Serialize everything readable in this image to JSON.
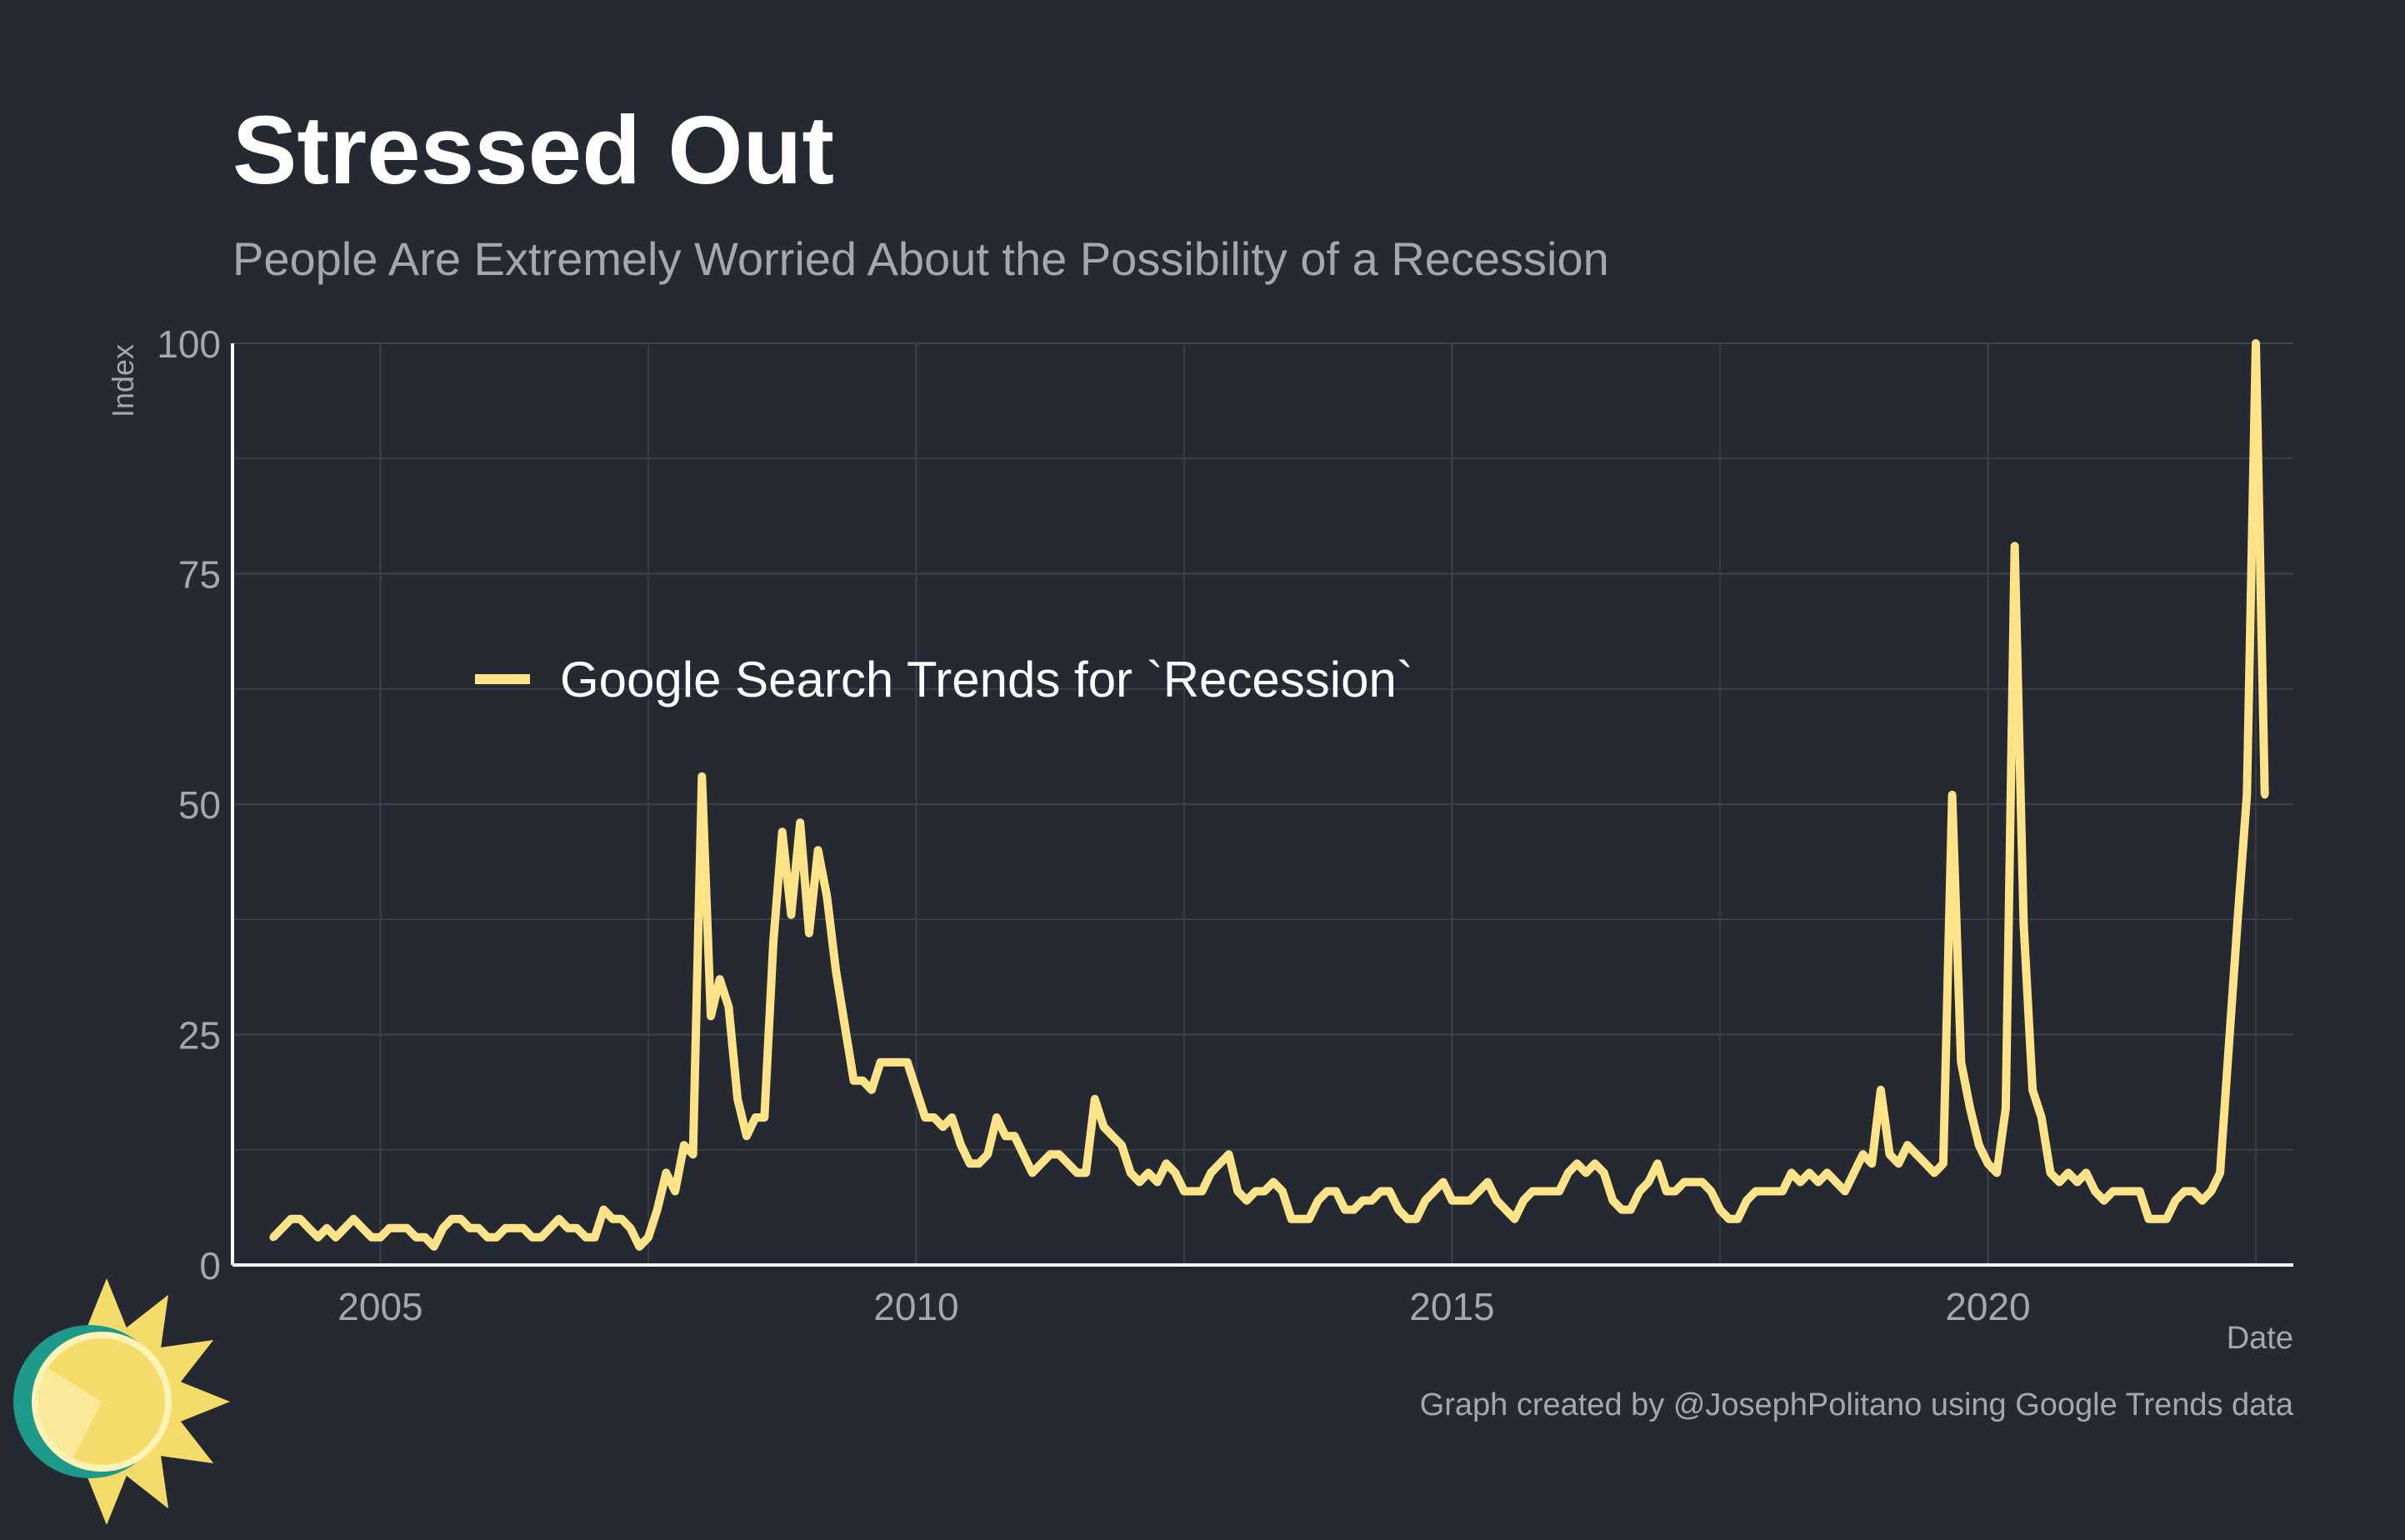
{
  "colors": {
    "background": "#252932",
    "grid": "#3d424c",
    "axis": "#ffffff",
    "title": "#ffffff",
    "subtitle": "#a4a7ad",
    "tick_label": "#a4a7ad",
    "legend_text": "#ffffff",
    "caption": "#a4a7ad",
    "series": "#fee388",
    "logo_sun": "#f5dc6a",
    "logo_ring": "#1e9a8a"
  },
  "chart_data": {
    "type": "line",
    "title": "Stressed Out",
    "subtitle": "People Are Extremely Worried About the Possibility of a Recession",
    "xlabel": "Date",
    "ylabel": "Index",
    "caption": "Graph created by @JosephPolitano using Google Trends data",
    "xlim": [
      2003.62,
      2022.85
    ],
    "ylim": [
      0,
      100
    ],
    "x_ticks": [
      2005,
      2010,
      2015,
      2020
    ],
    "x_tick_labels": [
      "2005",
      "2010",
      "2015",
      "2020"
    ],
    "y_ticks": [
      0,
      25,
      50,
      75,
      100
    ],
    "y_tick_labels": [
      "0",
      "25",
      "50",
      "75",
      "100"
    ],
    "grid": true,
    "legend": {
      "position": "upper-left-inside"
    },
    "series": [
      {
        "name": "Google Search Trends for `Recession`",
        "start": "2004-01",
        "frequency": "monthly",
        "values": [
          3,
          4,
          5,
          5,
          4,
          3,
          4,
          3,
          4,
          5,
          4,
          3,
          3,
          4,
          4,
          4,
          3,
          3,
          2,
          4,
          5,
          5,
          4,
          4,
          3,
          3,
          4,
          4,
          4,
          3,
          3,
          4,
          5,
          4,
          4,
          3,
          3,
          6,
          5,
          5,
          4,
          2,
          3,
          6,
          10,
          8,
          13,
          12,
          53,
          27,
          31,
          28,
          18,
          14,
          16,
          16,
          35,
          47,
          38,
          48,
          36,
          45,
          40,
          32,
          26,
          20,
          20,
          19,
          22,
          22,
          22,
          22,
          19,
          16,
          16,
          15,
          16,
          13,
          11,
          11,
          12,
          16,
          14,
          14,
          12,
          10,
          11,
          12,
          12,
          11,
          10,
          10,
          18,
          15,
          14,
          13,
          10,
          9,
          10,
          9,
          11,
          10,
          8,
          8,
          8,
          10,
          11,
          12,
          8,
          7,
          8,
          8,
          9,
          8,
          5,
          5,
          5,
          7,
          8,
          8,
          6,
          6,
          7,
          7,
          8,
          8,
          6,
          5,
          5,
          7,
          8,
          9,
          7,
          7,
          7,
          8,
          9,
          7,
          6,
          5,
          7,
          8,
          8,
          8,
          8,
          10,
          11,
          10,
          11,
          10,
          7,
          6,
          6,
          8,
          9,
          11,
          8,
          8,
          9,
          9,
          9,
          8,
          6,
          5,
          5,
          7,
          8,
          8,
          8,
          8,
          10,
          9,
          10,
          9,
          10,
          9,
          8,
          10,
          12,
          11,
          19,
          12,
          11,
          13,
          12,
          11,
          10,
          11,
          51,
          22,
          17,
          13,
          11,
          10,
          17,
          78,
          37,
          19,
          16,
          10,
          9,
          10,
          9,
          10,
          8,
          7,
          8,
          8,
          8,
          8,
          5,
          5,
          5,
          7,
          8,
          8,
          7,
          8,
          10,
          24,
          38,
          51,
          100,
          51
        ]
      }
    ]
  }
}
